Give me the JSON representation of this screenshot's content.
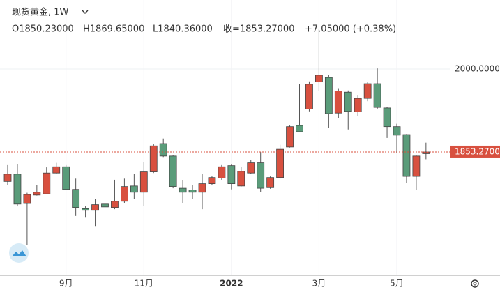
{
  "header": {
    "title": "现货黄金, 1W",
    "open": "O1850.23000",
    "high": "H1869.65000",
    "low": "L1840.36000",
    "close": "收=1853.27000",
    "change": "+7.05000 (+0.38%)"
  },
  "chart_data": {
    "type": "candlestick",
    "categories": [
      null,
      null,
      null,
      null,
      null,
      null,
      "9月",
      null,
      null,
      null,
      null,
      null,
      null,
      null,
      "11月",
      null,
      null,
      null,
      null,
      null,
      null,
      null,
      null,
      "2022",
      null,
      null,
      null,
      null,
      null,
      null,
      null,
      null,
      "3月",
      null,
      null,
      null,
      null,
      null,
      null,
      null,
      "5月",
      null,
      null,
      null
    ],
    "open": [
      1801,
      1814,
      1762,
      1777,
      1779,
      1816,
      1827,
      1787,
      1753,
      1750,
      1761,
      1755,
      1766,
      1793,
      1782,
      1818,
      1868,
      1846,
      1789,
      1786,
      1782,
      1797,
      1807,
      1829,
      1793,
      1816,
      1834,
      1790,
      1808,
      1862,
      1900,
      1929,
      1977,
      1985,
      1922,
      1959,
      1924,
      1948,
      1974,
      1931,
      1898,
      1884,
      1810,
      1850.23
    ],
    "high": [
      1830,
      1831,
      1781,
      1795,
      1826,
      1834,
      1830,
      1806,
      1757,
      1770,
      1781,
      1804,
      1806,
      1814,
      1835,
      1868,
      1877,
      1847,
      1803,
      1795,
      1814,
      1810,
      1830,
      1831,
      1827,
      1839,
      1853,
      1810,
      1866,
      1900,
      1974,
      1978,
      2070,
      1989,
      1966,
      1962,
      1953,
      1977,
      2001,
      1933,
      1903,
      1885,
      1847,
      1869.65
    ],
    "low": [
      1795,
      1757,
      1688,
      1776,
      1778,
      1814,
      1786,
      1740,
      1737,
      1721,
      1752,
      1752,
      1763,
      1770,
      1758,
      1816,
      1843,
      1789,
      1762,
      1770,
      1752,
      1794,
      1804,
      1787,
      1792,
      1814,
      1782,
      1788,
      1806,
      1861,
      1888,
      1925,
      1961,
      1896,
      1913,
      1893,
      1917,
      1943,
      1929,
      1878,
      1851,
      1798,
      1786,
      1840.36
    ],
    "close": [
      1814,
      1761,
      1778,
      1782,
      1816,
      1827,
      1787,
      1755,
      1750,
      1760,
      1756,
      1766,
      1792,
      1782,
      1818,
      1864,
      1846,
      1792,
      1782,
      1782,
      1797,
      1808,
      1827,
      1797,
      1819,
      1834,
      1789,
      1808,
      1858,
      1898,
      1889,
      1973,
      1989,
      1921,
      1961,
      1925,
      1948,
      1974,
      1932,
      1898,
      1883,
      1810,
      1846,
      1853.27
    ],
    "up_color": "#d8503f",
    "down_color": "#5a9c7a",
    "ylim": [
      1635,
      2122
    ],
    "yticks": [
      {
        "value": 2000,
        "label": "2000.00000"
      }
    ],
    "last_price": {
      "value": 1853.27,
      "label": "1853.27000"
    },
    "grid": true
  }
}
